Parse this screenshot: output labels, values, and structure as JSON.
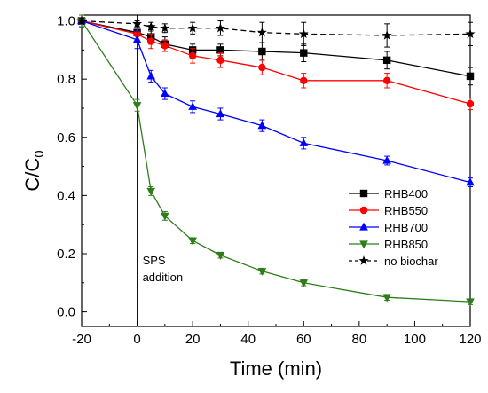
{
  "chart_data": {
    "type": "line",
    "xlabel": "Time (min)",
    "ylabel_main": "C/C",
    "ylabel_sub": "0",
    "xlim": [
      -20,
      120
    ],
    "ylim": [
      -0.05,
      1.02
    ],
    "xticks": [
      "-20",
      "0",
      "20",
      "40",
      "60",
      "80",
      "100",
      "120"
    ],
    "yticks": [
      "0.0",
      "0.2",
      "0.4",
      "0.6",
      "0.8",
      "1.0"
    ],
    "grid": false,
    "legend_position": "bottom-right",
    "annotation": {
      "lines": [
        "SPS",
        "addition"
      ],
      "vline_x": 0
    },
    "series": [
      {
        "name": "RHB400",
        "color": "#000000",
        "marker": "square",
        "dash": false,
        "x": [
          -20,
          0,
          5,
          10,
          20,
          30,
          45,
          60,
          90,
          120
        ],
        "y": [
          1.0,
          0.96,
          0.945,
          0.92,
          0.9,
          0.9,
          0.895,
          0.89,
          0.865,
          0.81
        ],
        "err": [
          0.02,
          0.03,
          0.025,
          0.025,
          0.02,
          0.02,
          0.03,
          0.03,
          0.03,
          0.03
        ]
      },
      {
        "name": "RHB550",
        "color": "#ff0000",
        "marker": "circle",
        "dash": false,
        "x": [
          -20,
          0,
          5,
          10,
          20,
          30,
          45,
          60,
          90,
          120
        ],
        "y": [
          1.0,
          0.955,
          0.93,
          0.915,
          0.88,
          0.865,
          0.84,
          0.795,
          0.795,
          0.715
        ],
        "err": [
          0.02,
          0.025,
          0.025,
          0.02,
          0.025,
          0.025,
          0.025,
          0.025,
          0.025,
          0.02
        ]
      },
      {
        "name": "RHB700",
        "color": "#0000ff",
        "marker": "triangle-up",
        "dash": false,
        "x": [
          -20,
          0,
          5,
          10,
          20,
          30,
          45,
          60,
          90,
          120
        ],
        "y": [
          1.0,
          0.935,
          0.81,
          0.75,
          0.705,
          0.68,
          0.64,
          0.58,
          0.52,
          0.445
        ],
        "err": [
          0.02,
          0.03,
          0.02,
          0.02,
          0.02,
          0.02,
          0.02,
          0.02,
          0.015,
          0.015
        ]
      },
      {
        "name": "RHB850",
        "color": "#2e7d1a",
        "marker": "triangle-down",
        "dash": false,
        "x": [
          -20,
          0,
          5,
          10,
          20,
          30,
          45,
          60,
          90,
          120
        ],
        "y": [
          1.0,
          0.71,
          0.415,
          0.33,
          0.245,
          0.195,
          0.14,
          0.1,
          0.05,
          0.035
        ],
        "err": [
          0.02,
          0.02,
          0.015,
          0.015,
          0.01,
          0.01,
          0.01,
          0.01,
          0.01,
          0.01
        ]
      },
      {
        "name": "no biochar",
        "color": "#000000",
        "marker": "star",
        "dash": true,
        "x": [
          -20,
          0,
          5,
          10,
          20,
          30,
          45,
          60,
          90,
          120
        ],
        "y": [
          1.0,
          0.99,
          0.98,
          0.975,
          0.975,
          0.975,
          0.96,
          0.955,
          0.95,
          0.955
        ],
        "err": [
          0.01,
          0.01,
          0.015,
          0.015,
          0.02,
          0.025,
          0.035,
          0.04,
          0.04,
          0.04
        ]
      }
    ]
  }
}
